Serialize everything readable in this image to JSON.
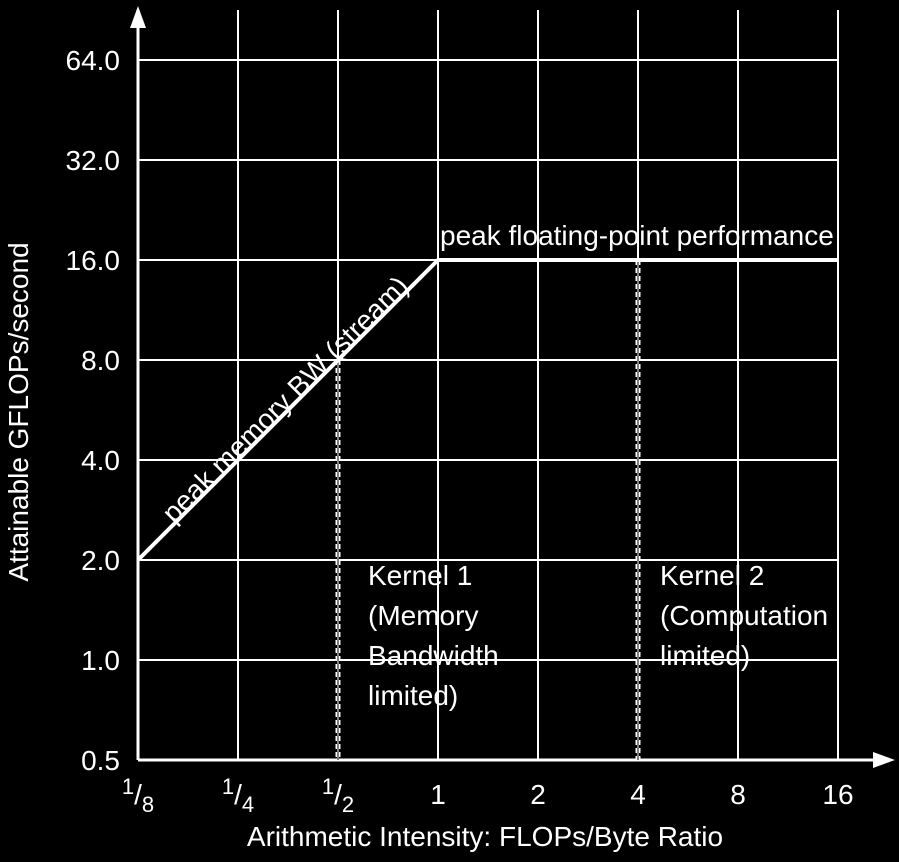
{
  "chart_data": {
    "type": "line",
    "x_label": "Arithmetic Intensity: FLOPs/Byte Ratio",
    "y_label": "Attainable GFLOPs/second",
    "x_scale": "log2",
    "y_scale": "log2",
    "grid": true,
    "color": "#ffffff",
    "xlim": [
      0.125,
      16
    ],
    "ylim": [
      0.5,
      64
    ],
    "xticks": [
      {
        "value": 0.125,
        "label": "1/8"
      },
      {
        "value": 0.25,
        "label": "1/4"
      },
      {
        "value": 0.5,
        "label": "1/2"
      },
      1,
      2,
      4,
      8,
      16
    ],
    "yticks": [
      {
        "value": 0.5,
        "label": "0.5"
      },
      {
        "value": 1,
        "label": "1.0"
      },
      {
        "value": 2,
        "label": "2.0"
      },
      {
        "value": 4,
        "label": "4.0"
      },
      {
        "value": 8,
        "label": "8.0"
      },
      {
        "value": 16,
        "label": "16.0"
      },
      {
        "value": 32,
        "label": "32.0"
      },
      {
        "value": 64,
        "label": "64.0"
      }
    ],
    "x": [
      0.125,
      1,
      16
    ],
    "values": [
      2,
      16,
      16
    ],
    "annotations": {
      "memory_bw": "peak memory BW (stream)",
      "peak_fp": "peak floating-point performance"
    },
    "kernels": [
      {
        "x": 0.5,
        "y": 8,
        "label": [
          "Kernel 1",
          "(Memory",
          "Bandwidth",
          "limited)"
        ]
      },
      {
        "x": 4,
        "y": 16,
        "label": [
          "Kernel 2",
          "(Computation",
          "limited)"
        ]
      }
    ]
  }
}
